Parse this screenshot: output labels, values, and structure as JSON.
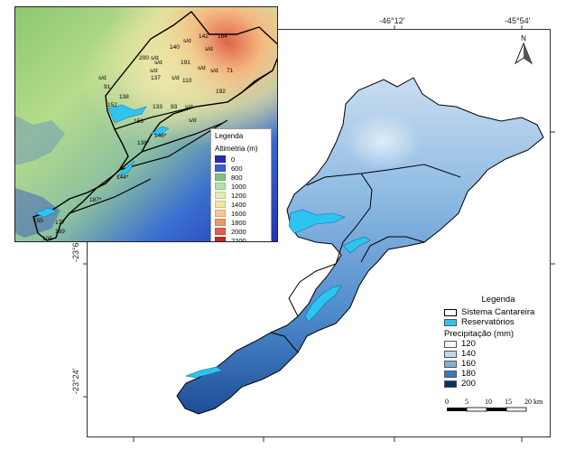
{
  "coords": {
    "top": [
      "-46°12′",
      "-45°54′"
    ],
    "left": [
      "-23°6′",
      "-23°24′"
    ]
  },
  "north_label": "N",
  "inset": {
    "legend_title": "Legenda",
    "legend_subtitle": "Altimetria (m)",
    "classes": [
      {
        "label": "0",
        "color": "#2b2bb0"
      },
      {
        "label": "600",
        "color": "#3a5fcf"
      },
      {
        "label": "800",
        "color": "#7fc08a"
      },
      {
        "label": "1000",
        "color": "#b8e0a0"
      },
      {
        "label": "1200",
        "color": "#e2eeb0"
      },
      {
        "label": "1400",
        "color": "#f3e2a0"
      },
      {
        "label": "1600",
        "color": "#f4c890"
      },
      {
        "label": "1800",
        "color": "#ec9a6a"
      },
      {
        "label": "2000",
        "color": "#e0604a"
      },
      {
        "label": "2200",
        "color": "#c8281e"
      }
    ],
    "station_labels": [
      {
        "text": "142"
      },
      {
        "text": "164"
      },
      {
        "text": "s/d"
      },
      {
        "text": "s/d"
      },
      {
        "text": "140"
      },
      {
        "text": "s/d"
      },
      {
        "text": "200"
      },
      {
        "text": "s/d"
      },
      {
        "text": "191"
      },
      {
        "text": "s/d"
      },
      {
        "text": "71"
      },
      {
        "text": "s/d"
      },
      {
        "text": "s/d"
      },
      {
        "text": "s/d"
      },
      {
        "text": "137"
      },
      {
        "text": "s/d"
      },
      {
        "text": "110"
      },
      {
        "text": "192"
      },
      {
        "text": "91"
      },
      {
        "text": "138"
      },
      {
        "text": "152"
      },
      {
        "text": "133"
      },
      {
        "text": "93"
      },
      {
        "text": "s/d"
      },
      {
        "text": "156"
      },
      {
        "text": "s/d"
      },
      {
        "text": "138*"
      },
      {
        "text": "146*"
      },
      {
        "text": "144*"
      },
      {
        "text": "187*"
      },
      {
        "text": "155"
      },
      {
        "text": "177"
      },
      {
        "text": "189"
      },
      {
        "text": "105"
      }
    ]
  },
  "main_legend": {
    "title": "Legenda",
    "items": [
      {
        "label": "Sistema Cantareira",
        "color": "#ffffff"
      },
      {
        "label": "Reservatórios",
        "color": "#2ec4f0"
      }
    ],
    "precip_title": "Precipitação (mm)",
    "precip": [
      {
        "label": "120",
        "color": "#f4f8fd"
      },
      {
        "label": "140",
        "color": "#c2d8ee"
      },
      {
        "label": "160",
        "color": "#7fb0dc"
      },
      {
        "label": "180",
        "color": "#3a78c0"
      },
      {
        "label": "200",
        "color": "#0a2f6e"
      }
    ]
  },
  "scale": {
    "ticks": [
      "0",
      "5",
      "10",
      "15",
      "20 km"
    ]
  }
}
